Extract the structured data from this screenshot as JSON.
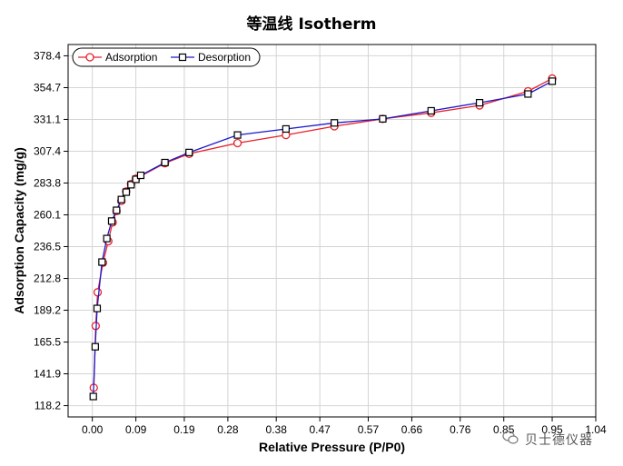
{
  "chart_data": {
    "type": "line",
    "title": "等温线 Isotherm",
    "xlabel": "Relative Pressure (P/P0)",
    "ylabel": "Adsorption Capacity (mg/g)",
    "xlim": [
      -0.05,
      1.04
    ],
    "ylim": [
      109.8,
      386.8
    ],
    "x_ticks": [
      0.0,
      0.09,
      0.19,
      0.28,
      0.38,
      0.47,
      0.57,
      0.66,
      0.76,
      0.85,
      0.95,
      1.04
    ],
    "x_tick_labels": [
      "0.00",
      "0.09",
      "0.19",
      "0.28",
      "0.38",
      "0.47",
      "0.57",
      "0.66",
      "0.76",
      "0.85",
      "0.95",
      "1.04"
    ],
    "y_ticks": [
      118.2,
      141.9,
      165.5,
      189.2,
      212.8,
      236.5,
      260.1,
      283.8,
      307.4,
      331.1,
      354.7,
      378.4
    ],
    "y_tick_labels": [
      "118.2",
      "141.9",
      "165.5",
      "189.2",
      "212.8",
      "236.5",
      "260.1",
      "283.8",
      "307.4",
      "331.1",
      "354.7",
      "378.4"
    ],
    "grid": true,
    "legend_position": "top-left",
    "series": [
      {
        "name": "Adsorption",
        "color": "#e8202a",
        "marker": "circle",
        "x": [
          0.003,
          0.007,
          0.011,
          0.022,
          0.033,
          0.042,
          0.05,
          0.06,
          0.07,
          0.08,
          0.09,
          0.15,
          0.2,
          0.3,
          0.4,
          0.5,
          0.6,
          0.7,
          0.8,
          0.9,
          0.95
        ],
        "y": [
          131.5,
          177.5,
          202.5,
          224.5,
          240.5,
          254.5,
          263.0,
          270.5,
          277.5,
          283.0,
          287.0,
          298.5,
          305.5,
          313.5,
          319.5,
          326.0,
          331.5,
          336.0,
          341.5,
          352.0,
          361.5
        ]
      },
      {
        "name": "Desorption",
        "color": "#1a1acc",
        "marker": "square",
        "x": [
          0.002,
          0.006,
          0.01,
          0.02,
          0.03,
          0.04,
          0.05,
          0.06,
          0.07,
          0.08,
          0.09,
          0.1,
          0.15,
          0.2,
          0.3,
          0.4,
          0.5,
          0.6,
          0.7,
          0.8,
          0.9,
          0.95
        ],
        "y": [
          125.0,
          162.0,
          190.5,
          225.0,
          242.5,
          255.5,
          263.5,
          271.5,
          277.0,
          282.5,
          286.5,
          289.5,
          299.0,
          306.5,
          319.5,
          324.0,
          328.5,
          331.5,
          337.5,
          343.5,
          350.0,
          359.5
        ]
      }
    ]
  },
  "watermark": {
    "text": "贝士德仪器",
    "icon": "wechat-icon"
  }
}
